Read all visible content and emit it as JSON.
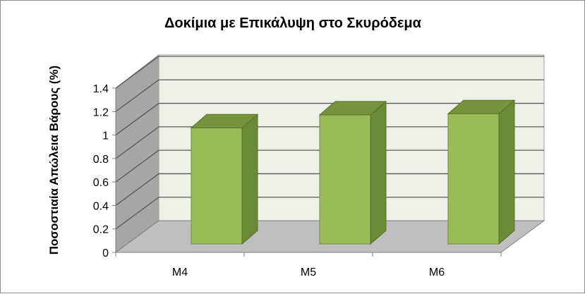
{
  "chart_data": {
    "type": "bar",
    "title": "Δοκίμια με Επικάλυψη στο Σκυρόδεμα",
    "xlabel": "",
    "ylabel": "Ποσοστιαία  Απώλεια Βάρους (%)",
    "categories": [
      "M4",
      "M5",
      "M6"
    ],
    "series": [
      {
        "values": [
          0.99,
          1.1,
          1.11
        ]
      }
    ],
    "ylim": [
      0,
      1.4
    ],
    "yticks": [
      "0",
      "0.2",
      "0.4",
      "0.6",
      "0.8",
      "1",
      "1.2",
      "1.4"
    ],
    "grid": true,
    "legend": "none",
    "style": "3d-column"
  },
  "colors": {
    "bar_front": "#9bbb59",
    "bar_side": "#6b8a35",
    "bar_top": "#77933c",
    "back_wall": "#eef1e8",
    "side_wall": "#a6a6a6",
    "floor": "#bfbfbf"
  }
}
